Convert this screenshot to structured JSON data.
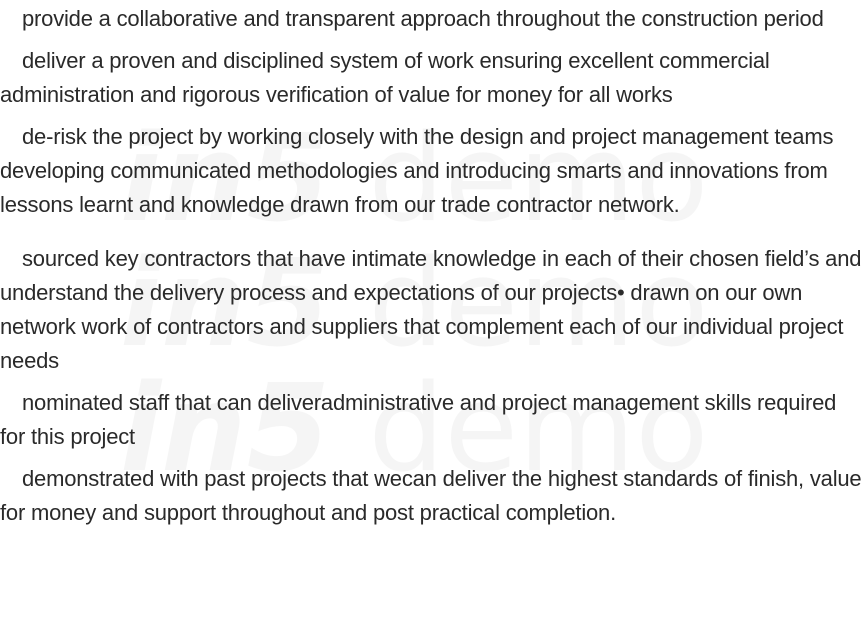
{
  "watermark": {
    "text_italic": "in5",
    "text_plain": "demo"
  },
  "paragraphs": [
    "provide a collaborative and transparent approach throughout the construction period",
    "deliver a proven and disciplined system of work ensuring excellent commercial administration and rigorous verification of value for money for all works",
    "de-risk the project by working closely with the design and project management teams developing communicated methodologies and introducing smarts and innovations from lessons learnt and knowledge drawn from our trade contractor network.",
    "sourced key contractors that have intimate knowledge in each of their chosen field’s and understand the delivery process and expectations of our projects• drawn on our own network work of contractors and suppliers that complement each of our individual project needs",
    "nominated staff that can deliveradministrative and project management skills required for this project",
    "demonstrated with past projects that wecan deliver the highest standards of finish, value for money and support throughout and post practical completion."
  ]
}
